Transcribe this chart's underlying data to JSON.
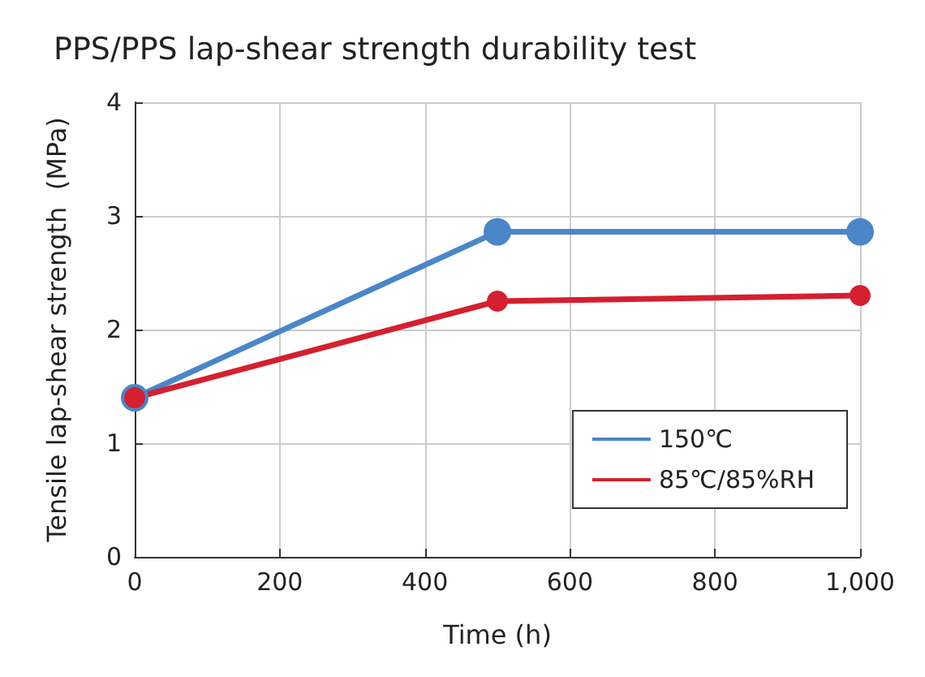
{
  "chart_data": {
    "type": "line",
    "title": "PPS/PPS lap-shear strength durability test",
    "xlabel": "Time (h)",
    "ylabel": "Tensile lap-shear strength  (MPa)",
    "x": [
      0,
      500,
      1000
    ],
    "series": [
      {
        "name": "150℃",
        "color": "#4a86c8",
        "values": [
          1.4,
          2.86,
          2.86
        ]
      },
      {
        "name": "85℃/85%RH",
        "color": "#d42030",
        "values": [
          1.4,
          2.25,
          2.3
        ]
      }
    ],
    "xlim": [
      0,
      1000
    ],
    "xticks": [
      0,
      200,
      400,
      600,
      800,
      {
        "value": 1000,
        "label": "1,000"
      }
    ],
    "ylim": [
      0,
      4
    ],
    "yticks": [
      0,
      1,
      2,
      3,
      4
    ],
    "grid": true,
    "legend": "bottom right",
    "marker": "circle",
    "line_style": "solid"
  }
}
